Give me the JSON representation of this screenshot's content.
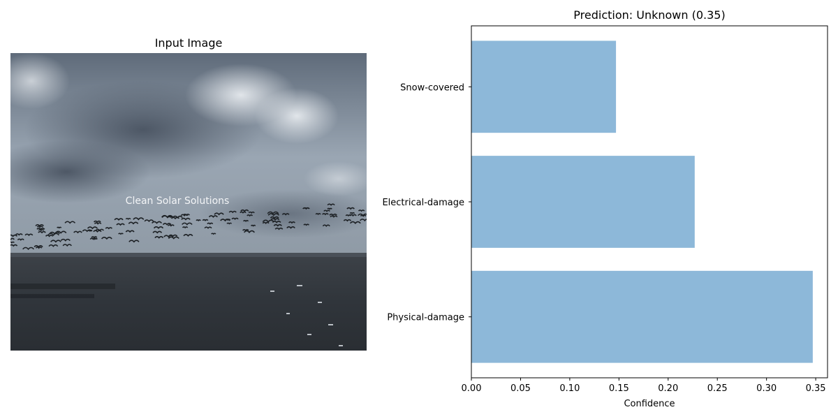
{
  "left_panel": {
    "title": "Input Image",
    "image_caption": "Clean Solar Solutions"
  },
  "chart_data": {
    "type": "bar",
    "orientation": "horizontal",
    "title": "Prediction: Unknown (0.35)",
    "xlabel": "Confidence",
    "ylabel": "",
    "categories": [
      "Physical-damage",
      "Electrical-damage",
      "Snow-covered"
    ],
    "values": [
      0.347,
      0.227,
      0.147
    ],
    "xlim": [
      0,
      0.362
    ],
    "xticks": [
      0,
      0.05,
      0.1,
      0.15,
      0.2,
      0.25,
      0.3,
      0.35
    ],
    "xtick_labels": [
      "0.00",
      "0.05",
      "0.10",
      "0.15",
      "0.20",
      "0.25",
      "0.30",
      "0.35"
    ],
    "grid": false,
    "bar_color": "#8db8d9"
  }
}
